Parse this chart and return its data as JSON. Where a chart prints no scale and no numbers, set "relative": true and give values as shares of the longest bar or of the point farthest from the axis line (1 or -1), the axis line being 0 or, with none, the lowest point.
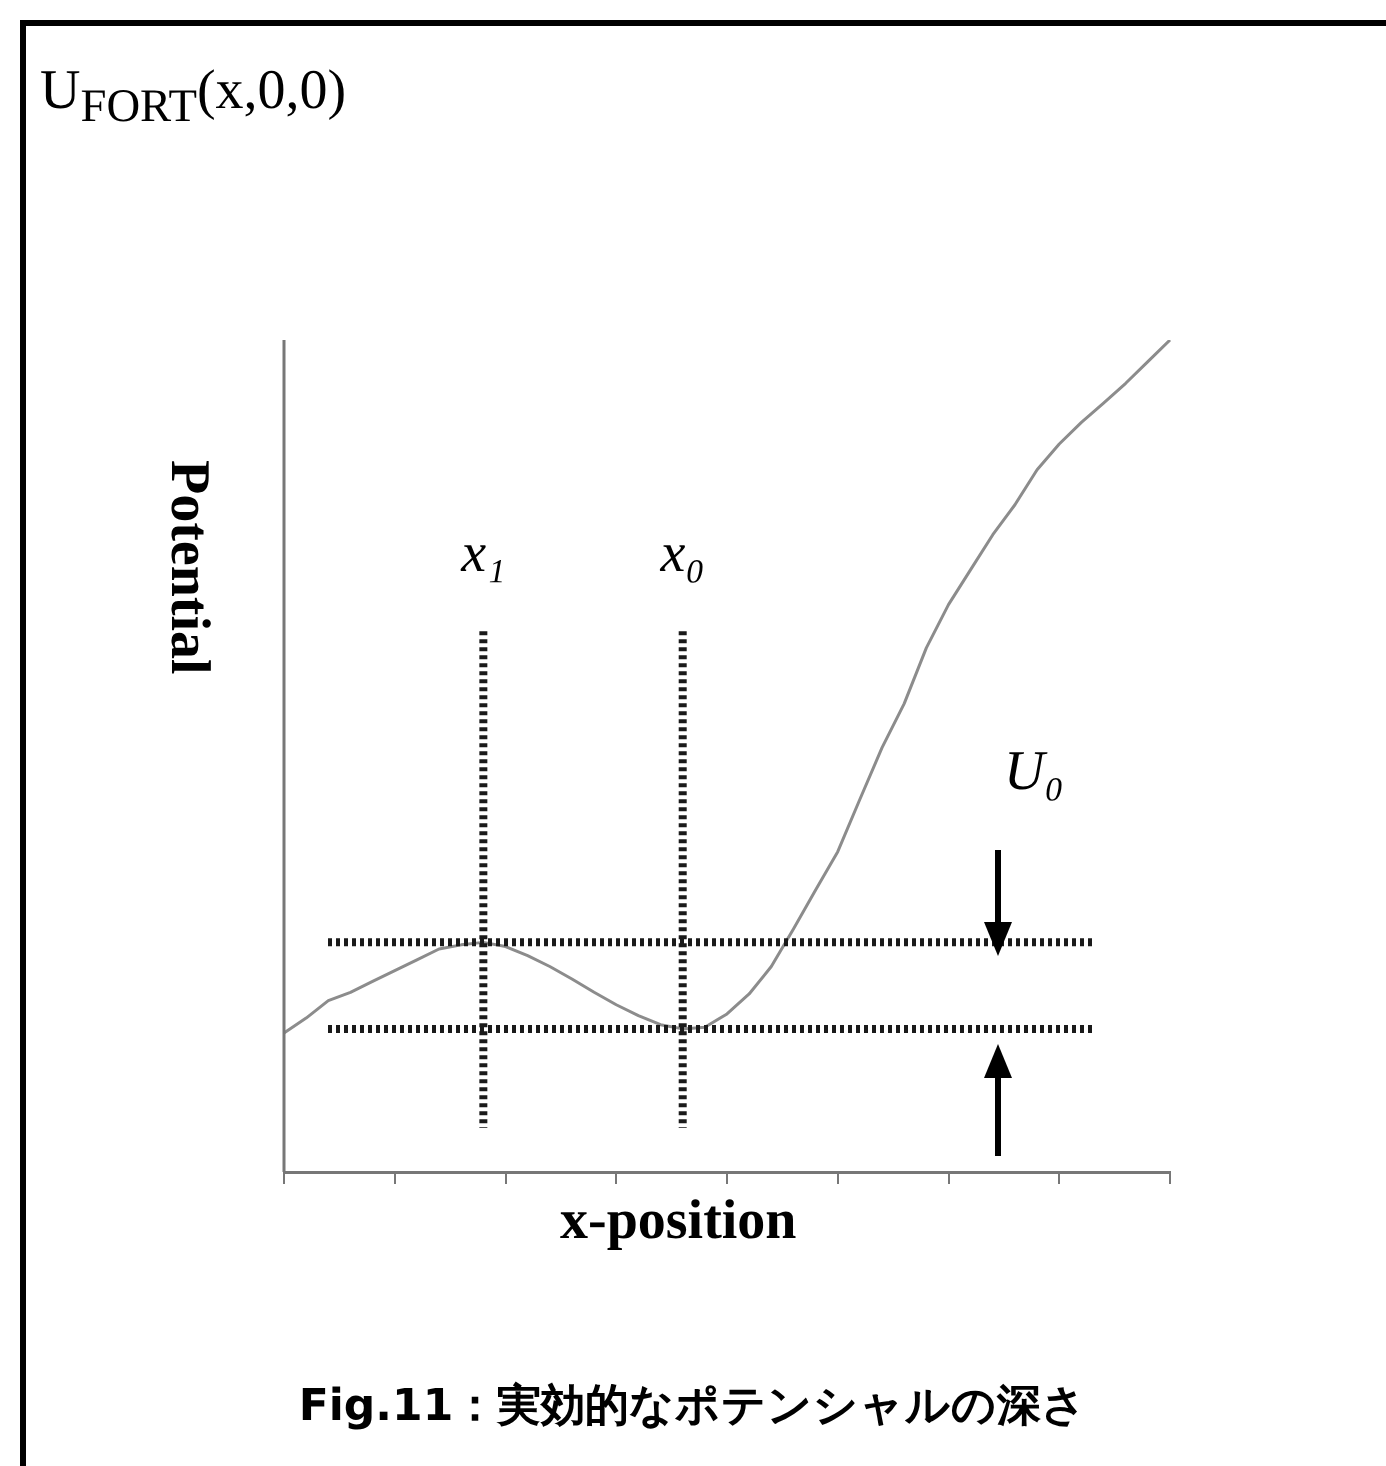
{
  "chart_data": {
    "type": "line",
    "title": "U$_{FORT}$(x,0,0)",
    "xlabel": "x-position",
    "ylabel": "Potential",
    "relative": true,
    "marker": "none",
    "line_style": "solid",
    "grid": false,
    "legend": false,
    "tick_labels": false,
    "categories": [
      null,
      null,
      null,
      null,
      null,
      null,
      null,
      null,
      null,
      null,
      null,
      null,
      null,
      null,
      null,
      null,
      null,
      null,
      null,
      null,
      null,
      null,
      null,
      null,
      null,
      null,
      null,
      null,
      null,
      null,
      null,
      null,
      null,
      null,
      null,
      null,
      null,
      null,
      null,
      null,
      null
    ],
    "series": [
      {
        "color": "#8c8c8c",
        "values": [
          0.167,
          0.185,
          0.206,
          0.216,
          0.229,
          0.242,
          0.255,
          0.268,
          0.273,
          0.276,
          0.271,
          0.26,
          0.247,
          0.232,
          0.216,
          0.201,
          0.188,
          0.177,
          0.172,
          0.174,
          0.19,
          0.214,
          0.247,
          0.292,
          0.339,
          0.385,
          0.448,
          0.51,
          0.563,
          0.63,
          0.682,
          0.724,
          0.766,
          0.802,
          0.844,
          0.875,
          0.901,
          0.924,
          0.948,
          0.974,
          1
        ]
      }
    ],
    "ref_lines": [
      {
        "axis": "y",
        "value": 0.276,
        "label": null,
        "color": "#1a1a1a",
        "line_style": "dotted"
      },
      {
        "axis": "y",
        "value": 0.172,
        "label": "U₀",
        "color": "#1a1a1a",
        "line_style": "dotted"
      }
    ],
    "annotations": [
      "x₁",
      "x₀",
      "Fig.11：実効的なポテンシャルの深さ"
    ]
  }
}
